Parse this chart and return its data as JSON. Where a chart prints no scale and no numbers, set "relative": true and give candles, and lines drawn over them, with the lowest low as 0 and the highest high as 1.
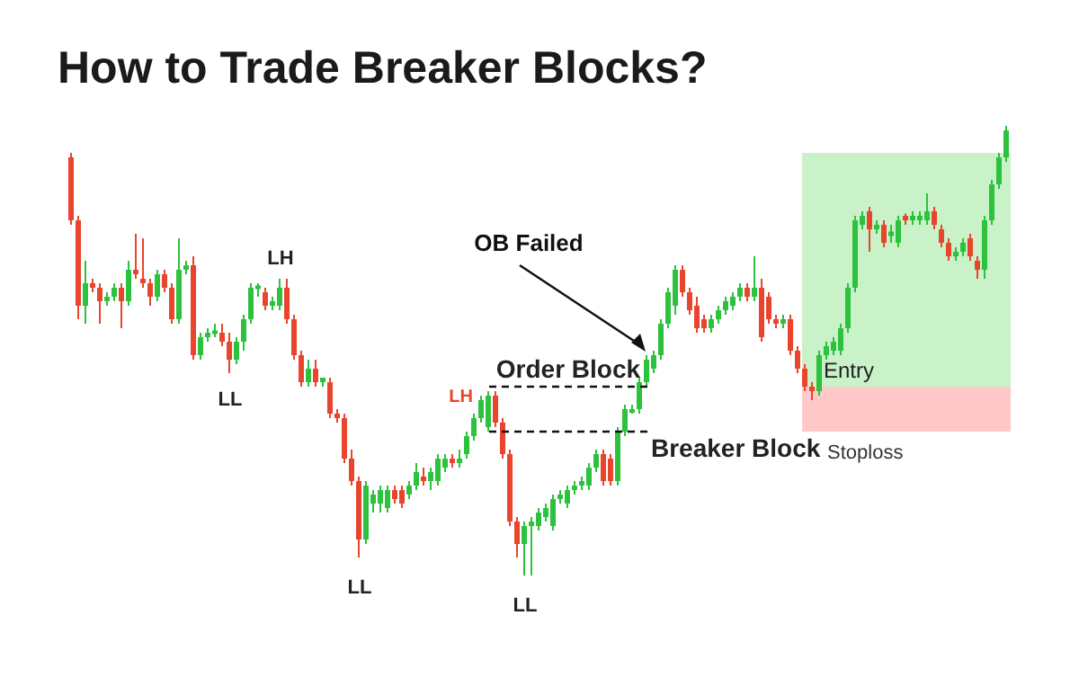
{
  "chart_data": {
    "type": "candlestick",
    "title": "How to Trade Breaker Blocks?",
    "relative": true,
    "tick_labels": false,
    "colors": [
      "#e8452c",
      "#e8452c",
      "#2cc23e",
      "#e8452c",
      "#e8452c",
      "#2cc23e",
      "#2cc23e",
      "#e8452c",
      "#2cc23e",
      "#e8452c",
      "#e8452c",
      "#e8452c",
      "#2cc23e",
      "#e8452c",
      "#e8452c",
      "#2cc23e",
      "#2cc23e",
      "#e8452c",
      "#2cc23e",
      "#2cc23e",
      "#2cc23e",
      "#e8452c",
      "#e8452c",
      "#2cc23e",
      "#2cc23e",
      "#2cc23e",
      "#2cc23e",
      "#e8452c",
      "#2cc23e",
      "#2cc23e",
      "#e8452c",
      "#e8452c",
      "#e8452c",
      "#2cc23e",
      "#e8452c",
      "#2cc23e",
      "#e8452c",
      "#e8452c",
      "#e8452c",
      "#e8452c",
      "#e8452c",
      "#2cc23e",
      "#2cc23e",
      "#2cc23e",
      "#2cc23e",
      "#e8452c",
      "#e8452c",
      "#2cc23e",
      "#2cc23e",
      "#e8452c",
      "#2cc23e",
      "#2cc23e",
      "#2cc23e",
      "#e8452c",
      "#2cc23e",
      "#2cc23e",
      "#2cc23e",
      "#2cc23e",
      "#2cc23e",
      "#e8452c",
      "#e8452c",
      "#e8452c",
      "#e8452c",
      "#2cc23e",
      "#2cc23e",
      "#2cc23e",
      "#2cc23e",
      "#2cc23e",
      "#2cc23e",
      "#2cc23e",
      "#2cc23e",
      "#2cc23e",
      "#2cc23e",
      "#2cc23e",
      "#e8452c",
      "#e8452c",
      "#2cc23e",
      "#2cc23e",
      "#2cc23e",
      "#2cc23e",
      "#2cc23e",
      "#2cc23e",
      "#2cc23e",
      "#2cc23e",
      "#2cc23e",
      "#e8452c",
      "#e8452c",
      "#e8452c",
      "#e8452c",
      "#2cc23e",
      "#2cc23e",
      "#2cc23e",
      "#2cc23e",
      "#2cc23e",
      "#e8452c",
      "#2cc23e",
      "#e8452c",
      "#e8452c",
      "#e8452c",
      "#2cc23e",
      "#e8452c",
      "#e8452c",
      "#e8452c",
      "#e8452c",
      "#2cc23e",
      "#2cc23e",
      "#2cc23e",
      "#2cc23e",
      "#2cc23e",
      "#2cc23e",
      "#2cc23e",
      "#e8452c",
      "#2cc23e",
      "#e8452c",
      "#2cc23e",
      "#2cc23e",
      "#e8452c",
      "#2cc23e",
      "#2cc23e",
      "#2cc23e",
      "#e8452c",
      "#e8452c",
      "#e8452c",
      "#2cc23e",
      "#2cc23e",
      "#e8452c",
      "#e8452c",
      "#2cc23e",
      "#2cc23e",
      "#2cc23e",
      "#2cc23e"
    ],
    "categories": [
      null,
      null,
      null,
      null,
      null,
      null,
      null,
      null,
      null,
      null,
      null,
      null,
      null,
      null,
      null,
      null,
      null,
      null,
      null,
      null,
      null,
      null,
      null,
      null,
      null,
      null,
      null,
      null,
      null,
      null,
      null,
      null,
      null,
      null,
      null,
      null,
      null,
      null,
      null,
      null,
      null,
      null,
      null,
      null,
      null,
      null,
      null,
      null,
      null,
      null,
      null,
      null,
      null,
      null,
      null,
      null,
      null,
      null,
      null,
      null,
      null,
      null,
      null,
      null,
      null,
      null,
      null,
      null,
      null,
      null,
      null,
      null,
      null,
      null,
      null,
      null,
      null,
      null,
      null,
      null,
      null,
      null,
      null,
      null,
      null,
      null,
      null,
      null,
      null,
      null,
      null,
      null,
      null,
      null,
      null,
      null,
      null,
      null,
      null,
      null,
      null,
      null,
      null,
      null,
      null,
      null,
      null,
      null,
      null,
      null,
      null,
      null,
      null,
      null,
      null,
      null,
      null,
      null,
      null,
      null,
      null,
      null,
      null,
      null,
      null,
      null,
      null,
      null,
      null,
      null,
      null
    ],
    "ohlc": [
      [
        0.93,
        0.94,
        0.78,
        0.79
      ],
      [
        0.79,
        0.8,
        0.57,
        0.6
      ],
      [
        0.6,
        0.7,
        0.56,
        0.65
      ],
      [
        0.65,
        0.66,
        0.63,
        0.64
      ],
      [
        0.64,
        0.65,
        0.56,
        0.61
      ],
      [
        0.61,
        0.63,
        0.6,
        0.62
      ],
      [
        0.62,
        0.65,
        0.61,
        0.64
      ],
      [
        0.64,
        0.65,
        0.55,
        0.61
      ],
      [
        0.61,
        0.7,
        0.6,
        0.68
      ],
      [
        0.68,
        0.76,
        0.66,
        0.67
      ],
      [
        0.66,
        0.75,
        0.64,
        0.65
      ],
      [
        0.65,
        0.66,
        0.6,
        0.62
      ],
      [
        0.62,
        0.68,
        0.61,
        0.67
      ],
      [
        0.67,
        0.68,
        0.63,
        0.64
      ],
      [
        0.64,
        0.65,
        0.56,
        0.57
      ],
      [
        0.57,
        0.75,
        0.56,
        0.68
      ],
      [
        0.68,
        0.7,
        0.67,
        0.69
      ],
      [
        0.69,
        0.71,
        0.48,
        0.49
      ],
      [
        0.49,
        0.54,
        0.48,
        0.53
      ],
      [
        0.53,
        0.55,
        0.52,
        0.54
      ],
      [
        0.54,
        0.56,
        0.53,
        0.545
      ],
      [
        0.54,
        0.56,
        0.51,
        0.52
      ],
      [
        0.52,
        0.54,
        0.45,
        0.48
      ],
      [
        0.48,
        0.53,
        0.47,
        0.52
      ],
      [
        0.52,
        0.58,
        0.5,
        0.57
      ],
      [
        0.57,
        0.65,
        0.56,
        0.64
      ],
      [
        0.64,
        0.65,
        0.62,
        0.645
      ],
      [
        0.63,
        0.64,
        0.59,
        0.6
      ],
      [
        0.6,
        0.62,
        0.59,
        0.61
      ],
      [
        0.6,
        0.66,
        0.59,
        0.64
      ],
      [
        0.64,
        0.66,
        0.56,
        0.57
      ],
      [
        0.57,
        0.58,
        0.48,
        0.49
      ],
      [
        0.49,
        0.5,
        0.42,
        0.43
      ],
      [
        0.43,
        0.48,
        0.42,
        0.46
      ],
      [
        0.46,
        0.48,
        0.42,
        0.43
      ],
      [
        0.43,
        0.44,
        0.42,
        0.44
      ],
      [
        0.43,
        0.44,
        0.35,
        0.36
      ],
      [
        0.36,
        0.37,
        0.34,
        0.35
      ],
      [
        0.35,
        0.36,
        0.25,
        0.26
      ],
      [
        0.26,
        0.28,
        0.2,
        0.21
      ],
      [
        0.21,
        0.22,
        0.04,
        0.08
      ],
      [
        0.08,
        0.21,
        0.07,
        0.2
      ],
      [
        0.16,
        0.19,
        0.14,
        0.18
      ],
      [
        0.16,
        0.2,
        0.14,
        0.19
      ],
      [
        0.15,
        0.2,
        0.14,
        0.19
      ],
      [
        0.19,
        0.2,
        0.16,
        0.17
      ],
      [
        0.19,
        0.2,
        0.15,
        0.16
      ],
      [
        0.18,
        0.21,
        0.17,
        0.2
      ],
      [
        0.2,
        0.25,
        0.19,
        0.23
      ],
      [
        0.22,
        0.24,
        0.2,
        0.21
      ],
      [
        0.21,
        0.24,
        0.19,
        0.23
      ],
      [
        0.21,
        0.27,
        0.2,
        0.26
      ],
      [
        0.24,
        0.27,
        0.23,
        0.26
      ],
      [
        0.26,
        0.27,
        0.24,
        0.25
      ],
      [
        0.25,
        0.28,
        0.24,
        0.26
      ],
      [
        0.27,
        0.32,
        0.26,
        0.31
      ],
      [
        0.31,
        0.36,
        0.3,
        0.35
      ],
      [
        0.35,
        0.4,
        0.34,
        0.39
      ],
      [
        0.33,
        0.41,
        0.32,
        0.4
      ],
      [
        0.4,
        0.41,
        0.33,
        0.34
      ],
      [
        0.34,
        0.35,
        0.26,
        0.27
      ],
      [
        0.27,
        0.28,
        0.11,
        0.12
      ],
      [
        0.12,
        0.13,
        0.04,
        0.07
      ],
      [
        0.07,
        0.12,
        0,
        0.11
      ],
      [
        0.11,
        0.13,
        0,
        0.12
      ],
      [
        0.11,
        0.15,
        0.1,
        0.14
      ],
      [
        0.13,
        0.16,
        0.12,
        0.15
      ],
      [
        0.11,
        0.18,
        0.1,
        0.17
      ],
      [
        0.17,
        0.19,
        0.16,
        0.18
      ],
      [
        0.16,
        0.2,
        0.15,
        0.19
      ],
      [
        0.19,
        0.21,
        0.18,
        0.2
      ],
      [
        0.2,
        0.22,
        0.19,
        0.21
      ],
      [
        0.2,
        0.25,
        0.19,
        0.24
      ],
      [
        0.24,
        0.28,
        0.23,
        0.27
      ],
      [
        0.27,
        0.28,
        0.2,
        0.21
      ],
      [
        0.26,
        0.27,
        0.2,
        0.21
      ],
      [
        0.21,
        0.33,
        0.2,
        0.32
      ],
      [
        0.32,
        0.38,
        0.31,
        0.37
      ],
      [
        0.365,
        0.38,
        0.36,
        0.37
      ],
      [
        0.37,
        0.44,
        0.36,
        0.43
      ],
      [
        0.43,
        0.49,
        0.42,
        0.48
      ],
      [
        0.46,
        0.5,
        0.45,
        0.49
      ],
      [
        0.49,
        0.57,
        0.48,
        0.56
      ],
      [
        0.56,
        0.64,
        0.55,
        0.63
      ],
      [
        0.6,
        0.69,
        0.58,
        0.68
      ],
      [
        0.68,
        0.69,
        0.62,
        0.63
      ],
      [
        0.63,
        0.64,
        0.58,
        0.59
      ],
      [
        0.6,
        0.62,
        0.54,
        0.55
      ],
      [
        0.57,
        0.58,
        0.54,
        0.55
      ],
      [
        0.55,
        0.58,
        0.54,
        0.57
      ],
      [
        0.57,
        0.6,
        0.56,
        0.59
      ],
      [
        0.59,
        0.62,
        0.58,
        0.61
      ],
      [
        0.6,
        0.63,
        0.59,
        0.62
      ],
      [
        0.62,
        0.65,
        0.61,
        0.64
      ],
      [
        0.64,
        0.65,
        0.61,
        0.62
      ],
      [
        0.62,
        0.71,
        0.61,
        0.64
      ],
      [
        0.64,
        0.66,
        0.52,
        0.53
      ],
      [
        0.62,
        0.63,
        0.56,
        0.57
      ],
      [
        0.57,
        0.58,
        0.55,
        0.56
      ],
      [
        0.56,
        0.58,
        0.55,
        0.57
      ],
      [
        0.57,
        0.58,
        0.49,
        0.5
      ],
      [
        0.5,
        0.51,
        0.45,
        0.46
      ],
      [
        0.46,
        0.47,
        0.41,
        0.42
      ],
      [
        0.42,
        0.43,
        0.39,
        0.41
      ],
      [
        0.41,
        0.5,
        0.4,
        0.49
      ],
      [
        0.49,
        0.52,
        0.48,
        0.51
      ],
      [
        0.5,
        0.53,
        0.49,
        0.52
      ],
      [
        0.5,
        0.56,
        0.49,
        0.55
      ],
      [
        0.55,
        0.65,
        0.54,
        0.64
      ],
      [
        0.64,
        0.8,
        0.63,
        0.79
      ],
      [
        0.78,
        0.81,
        0.77,
        0.8
      ],
      [
        0.81,
        0.82,
        0.72,
        0.77
      ],
      [
        0.77,
        0.79,
        0.76,
        0.78
      ],
      [
        0.78,
        0.79,
        0.73,
        0.74
      ],
      [
        0.755,
        0.78,
        0.74,
        0.765
      ],
      [
        0.74,
        0.8,
        0.73,
        0.79
      ],
      [
        0.8,
        0.805,
        0.78,
        0.79
      ],
      [
        0.79,
        0.81,
        0.78,
        0.8
      ],
      [
        0.79,
        0.81,
        0.78,
        0.8
      ],
      [
        0.79,
        0.85,
        0.78,
        0.81
      ],
      [
        0.81,
        0.82,
        0.77,
        0.78
      ],
      [
        0.77,
        0.78,
        0.73,
        0.74
      ],
      [
        0.74,
        0.75,
        0.7,
        0.71
      ],
      [
        0.71,
        0.73,
        0.7,
        0.72
      ],
      [
        0.72,
        0.75,
        0.71,
        0.74
      ],
      [
        0.75,
        0.76,
        0.7,
        0.71
      ],
      [
        0.7,
        0.71,
        0.66,
        0.68
      ],
      [
        0.68,
        0.8,
        0.66,
        0.79
      ],
      [
        0.79,
        0.88,
        0.78,
        0.87
      ],
      [
        0.87,
        0.94,
        0.86,
        0.93
      ],
      [
        0.93,
        1,
        0.92,
        0.99
      ]
    ],
    "ref_lines": [
      {
        "axis": "y",
        "value": 0.42,
        "label": "Order Block",
        "line_style": "dashed",
        "color": "#111111"
      },
      {
        "axis": "y",
        "value": 0.32,
        "label": "Breaker Block",
        "line_style": "dashed",
        "color": "#111111"
      }
    ],
    "bands": [
      {
        "axis": "y",
        "from": 0.42,
        "to": 0.94,
        "label": "Entry",
        "color": "#c9f2c9"
      },
      {
        "axis": "y",
        "from": 0.32,
        "to": 0.42,
        "label": "Stoploss",
        "color": "#ffc9c9"
      }
    ],
    "annotations": [
      {
        "text": "LH",
        "y": 0.66
      },
      {
        "text": "LL",
        "y": 0.45
      },
      {
        "text": "LL",
        "y": 0.04
      },
      {
        "text": "LL",
        "y": 0
      },
      "LH",
      "OB Failed"
    ]
  }
}
